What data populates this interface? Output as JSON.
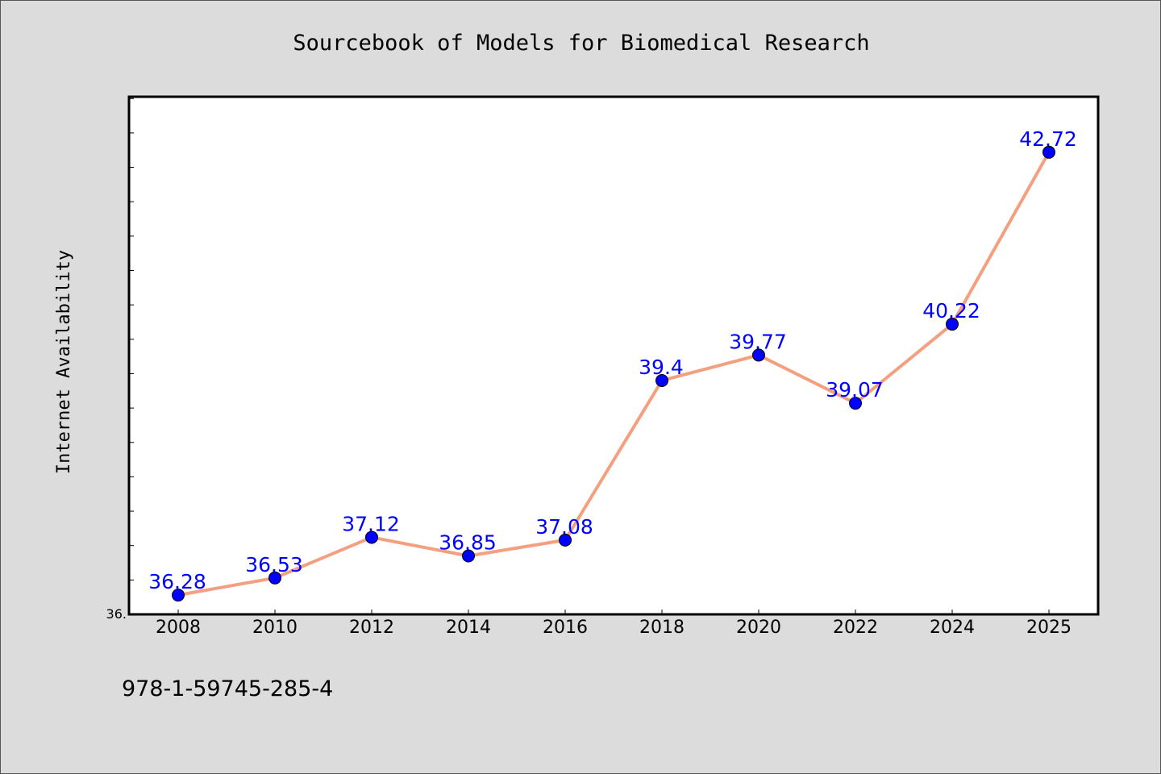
{
  "colors": {
    "background": "#dcdcdc",
    "plot_background": "#ffffff",
    "line": "#f4a080",
    "marker": "#0000ff",
    "label": "#0000ff",
    "axis": "#000000"
  },
  "footnote": "978-1-59745-285-4",
  "chart_data": {
    "type": "line",
    "title": "Sourcebook of Models for Biomedical Research",
    "xlabel": "",
    "ylabel": "Internet Availability",
    "categories": [
      "2008",
      "2010",
      "2012",
      "2014",
      "2016",
      "2018",
      "2020",
      "2022",
      "2024",
      "2025"
    ],
    "series": [
      {
        "values": [
          36.28,
          36.53,
          37.12,
          36.85,
          37.08,
          39.4,
          39.77,
          39.07,
          40.22,
          42.72
        ]
      }
    ],
    "data_labels": [
      "36.28",
      "36.53",
      "37.12",
      "36.85",
      "37.08",
      "39.4",
      "39.77",
      "39.07",
      "40.22",
      "42.72"
    ],
    "ylim": [
      36.0,
      43.5
    ],
    "y_tick_labels": [
      {
        "value": 36.0,
        "label": "36."
      }
    ],
    "y_minor_step": 0.5,
    "grid": false,
    "marker": "circle"
  }
}
